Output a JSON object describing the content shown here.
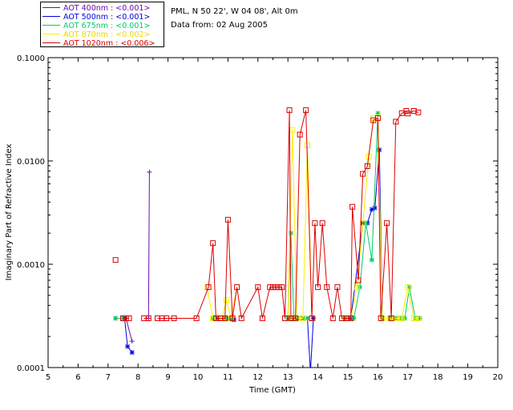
{
  "header": {
    "station": "PML, N 50 22', W 04 08', Alt 0m",
    "date": "Data from: 02 Aug 2005"
  },
  "chart_data": {
    "type": "line",
    "title": "",
    "xlabel": "Time (GMT)",
    "ylabel": "Imaginary Part of Refractive Index",
    "xlim": [
      5,
      20
    ],
    "ylim": [
      0.0001,
      0.1
    ],
    "yscale": "log",
    "xticks": [
      5,
      6,
      7,
      8,
      9,
      10,
      11,
      12,
      13,
      14,
      15,
      16,
      17,
      18,
      19,
      20
    ],
    "yticks": [
      {
        "value": 0.0001,
        "label": "0.0001"
      },
      {
        "value": 0.001,
        "label": "0.0010"
      },
      {
        "value": 0.01,
        "label": "0.0100"
      },
      {
        "value": 0.1,
        "label": "0.1000"
      }
    ],
    "legend_position": "top-left",
    "series": [
      {
        "name": "AOT  400nm : <0.001>",
        "color": "#6a0dad",
        "marker": "plus",
        "x": [
          7.6,
          7.8,
          null,
          8.35,
          8.38
        ],
        "y": [
          0.0003,
          0.00018,
          null,
          0.0003,
          0.0078
        ]
      },
      {
        "name": "AOT  500nm : <0.001>",
        "color": "#0000dd",
        "marker": "asterisk",
        "x": [
          7.25,
          7.55,
          7.65,
          7.8,
          null,
          10.6,
          10.9,
          11.0,
          11.1,
          11.2,
          null,
          13.05,
          13.2,
          13.3,
          13.5,
          13.65,
          13.75,
          13.85,
          null,
          14.9,
          15.0,
          15.1,
          15.5,
          15.65,
          15.8,
          15.9,
          16.05,
          16.15
        ],
        "y": [
          0.0003,
          0.0003,
          0.00016,
          0.00014,
          null,
          0.0003,
          0.0003,
          0.0003,
          0.0003,
          0.00029,
          null,
          0.0003,
          0.0003,
          0.0003,
          0.0003,
          0.0003,
          9e-05,
          0.0003,
          null,
          0.0003,
          0.0003,
          0.0003,
          0.0025,
          0.0025,
          0.0034,
          0.0035,
          0.0128,
          0.0003
        ]
      },
      {
        "name": "AOT  675nm : <0.001>",
        "color": "#00cc66",
        "marker": "asterisk",
        "x": [
          7.25,
          7.5,
          null,
          10.5,
          10.7,
          10.9,
          11.0,
          11.1,
          null,
          13.0,
          13.1,
          13.2,
          13.35,
          13.5,
          13.65,
          null,
          14.9,
          15.0,
          15.2,
          15.4,
          15.6,
          15.8,
          16.0,
          16.15,
          16.4,
          16.6,
          16.75,
          16.9,
          17.05,
          17.25,
          17.4
        ],
        "y": [
          0.0003,
          0.0003,
          null,
          0.0003,
          0.0003,
          0.0003,
          0.0003,
          0.0003,
          null,
          0.0003,
          0.002,
          0.0003,
          0.0003,
          0.0003,
          0.0003,
          null,
          0.0003,
          0.0003,
          0.0003,
          0.0006,
          0.0025,
          0.0011,
          0.029,
          0.0003,
          0.0003,
          0.0003,
          0.0003,
          0.0003,
          0.0006,
          0.0003,
          0.0003
        ]
      },
      {
        "name": "AOT  870nm : <0.002>",
        "color": "#ffee00",
        "marker": "square",
        "x": [
          10.3,
          10.5,
          10.65,
          10.8,
          10.95,
          11.1,
          11.3,
          null,
          13.0,
          13.15,
          13.3,
          13.5,
          13.65,
          13.8,
          null,
          14.9,
          15.1,
          15.3,
          15.5,
          15.7,
          15.85,
          16.0,
          16.15,
          16.4,
          16.6,
          16.8,
          17.0,
          17.2,
          17.35
        ],
        "y": [
          0.0006,
          0.0003,
          0.0003,
          0.0003,
          0.00045,
          0.0003,
          0.0006,
          null,
          0.0003,
          0.02,
          0.0003,
          0.0003,
          0.0142,
          0.0003,
          null,
          0.0003,
          0.0003,
          0.0006,
          0.0025,
          0.011,
          0.026,
          0.0265,
          0.0003,
          0.0003,
          0.0003,
          0.0003,
          0.0006,
          0.0003,
          0.0003
        ]
      },
      {
        "name": "AOT 1020nm : <0.006>",
        "color": "#dd0000",
        "marker": "square",
        "x": [
          7.25,
          null,
          7.5,
          7.6,
          7.7,
          null,
          8.2,
          8.35,
          null,
          8.65,
          8.8,
          8.95,
          9.2,
          9.95,
          10.35,
          10.5,
          10.6,
          10.75,
          10.9,
          11.0,
          11.15,
          11.3,
          11.45,
          12.0,
          12.15,
          12.4,
          12.5,
          12.6,
          12.7,
          12.8,
          12.9,
          13.05,
          13.1,
          13.25,
          13.4,
          13.6,
          13.8,
          13.9,
          14.0,
          14.15,
          14.3,
          14.5,
          14.65,
          14.8,
          14.95,
          15.1,
          15.15,
          15.35,
          15.5,
          15.65,
          15.85,
          16.0,
          16.1,
          16.3,
          16.45,
          16.6,
          16.8,
          16.95,
          17.0,
          17.2,
          17.35
        ],
        "y": [
          0.0011,
          null,
          0.0003,
          0.0003,
          0.0003,
          null,
          0.0003,
          0.0003,
          null,
          0.0003,
          0.0003,
          0.0003,
          0.0003,
          0.0003,
          0.0006,
          0.0016,
          0.0003,
          0.0003,
          0.0003,
          0.0027,
          0.0003,
          0.0006,
          0.0003,
          0.0006,
          0.0003,
          0.0006,
          0.0006,
          0.0006,
          0.0006,
          0.0006,
          0.0003,
          0.031,
          0.0003,
          0.0003,
          0.018,
          0.031,
          0.0003,
          0.0025,
          0.0006,
          0.0025,
          0.0006,
          0.0003,
          0.0006,
          0.0003,
          0.0003,
          0.0003,
          0.0036,
          0.0007,
          0.0075,
          0.0089,
          0.0248,
          0.026,
          0.0003,
          0.0025,
          0.0003,
          0.024,
          0.029,
          0.0305,
          0.0288,
          0.0305,
          0.0295
        ]
      }
    ]
  }
}
